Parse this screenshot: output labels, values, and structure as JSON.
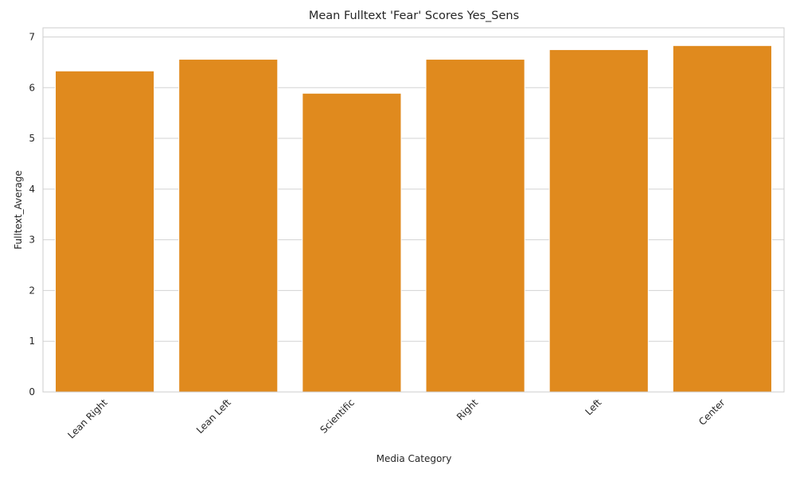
{
  "chart_data": {
    "type": "bar",
    "title": "Mean Fulltext 'Fear' Scores Yes_Sens",
    "xlabel": "Media Category",
    "ylabel": "Fulltext_Average",
    "categories": [
      "Lean Right",
      "Lean Left",
      "Scientific",
      "Right",
      "Left",
      "Center"
    ],
    "values": [
      6.33,
      6.56,
      5.89,
      6.56,
      6.75,
      6.83
    ],
    "ylim": [
      0,
      7.18
    ],
    "yticks": [
      0,
      1,
      2,
      3,
      4,
      5,
      6,
      7
    ],
    "bar_color": "#e08a1e",
    "grid": true,
    "legend": "none"
  }
}
